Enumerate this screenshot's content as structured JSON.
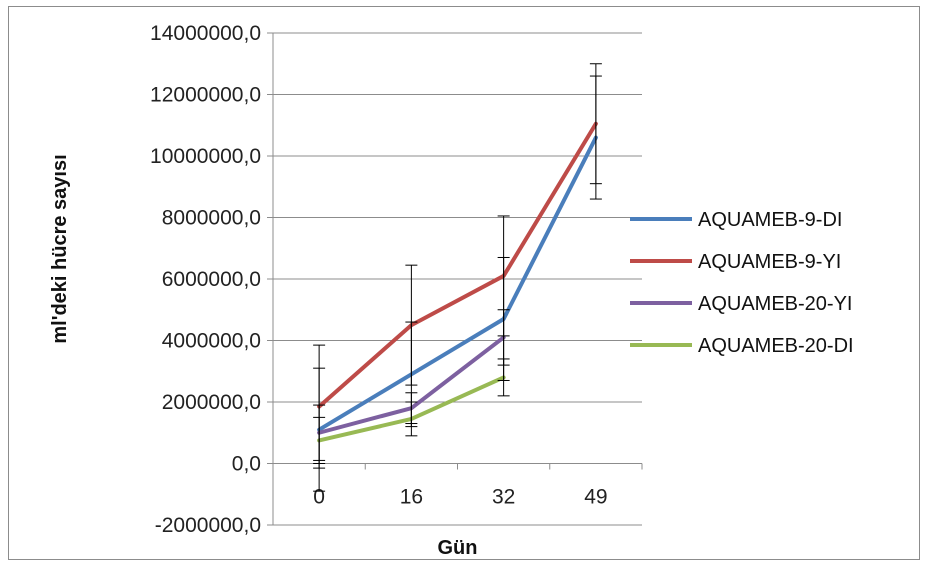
{
  "chart_data": {
    "type": "line",
    "categories": [
      "0",
      "16",
      "32",
      "49"
    ],
    "xlabel": "Gün",
    "ylabel": "ml'deki hücre sayısı",
    "ylim": [
      -2000000,
      14000000
    ],
    "yticks": [
      "14000000,0",
      "12000000,0",
      "10000000,0",
      "8000000,0",
      "6000000,0",
      "4000000,0",
      "2000000,0",
      "0,0",
      "-2000000,0"
    ],
    "ytick_values": [
      14000000,
      12000000,
      10000000,
      8000000,
      6000000,
      4000000,
      2000000,
      0,
      -2000000
    ],
    "grid": true,
    "legend": "right",
    "series": [
      {
        "name": "AQUAMEB-9-DI",
        "color": "#4a7ebb",
        "values": [
          1100000,
          2900000,
          4700000,
          10600000
        ],
        "err": [
          2000000,
          1700000,
          2000000,
          2000000
        ]
      },
      {
        "name": "AQUAMEB-9-YI",
        "color": "#be4b48",
        "values": [
          1850000,
          4500000,
          6100000,
          11050000
        ],
        "err": [
          2000000,
          1950000,
          1950000,
          1950000
        ]
      },
      {
        "name": "AQUAMEB-20-YI",
        "color": "#7d60a0",
        "values": [
          1000000,
          1800000,
          4100000,
          null
        ],
        "err": [
          900000,
          500000,
          900000,
          null
        ]
      },
      {
        "name": "AQUAMEB-20-DI",
        "color": "#98b954",
        "values": [
          750000,
          1450000,
          2800000,
          null
        ],
        "err": [
          750000,
          550000,
          600000,
          null
        ]
      }
    ]
  }
}
